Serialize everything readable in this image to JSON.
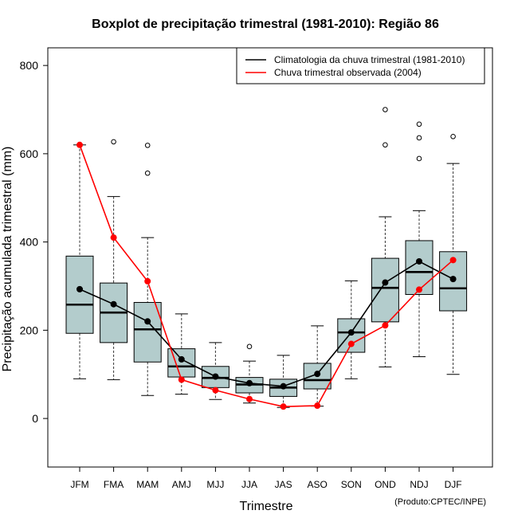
{
  "chart_data": {
    "type": "boxplot",
    "title": "Boxplot de precipitação trimestral (1981-2010): Região 86",
    "xlabel": "Trimestre",
    "ylabel": "Precipitação acumulada trimestral (mm)",
    "ylim": [
      -110,
      840
    ],
    "yticks": [
      0,
      200,
      400,
      600,
      800
    ],
    "categories": [
      "JFM",
      "FMA",
      "MAM",
      "AMJ",
      "MJJ",
      "JJA",
      "JAS",
      "ASO",
      "SON",
      "OND",
      "NDJ",
      "DJF"
    ],
    "boxes": [
      {
        "category": "JFM",
        "whisker_low": 90,
        "q1": 193,
        "median": 258,
        "q3": 368,
        "whisker_high": 620,
        "outliers": []
      },
      {
        "category": "FMA",
        "whisker_low": 88,
        "q1": 172,
        "median": 240,
        "q3": 307,
        "whisker_high": 503,
        "outliers": [
          627
        ]
      },
      {
        "category": "MAM",
        "whisker_low": 52,
        "q1": 128,
        "median": 202,
        "q3": 263,
        "whisker_high": 410,
        "outliers": [
          556,
          619
        ]
      },
      {
        "category": "AMJ",
        "whisker_low": 55,
        "q1": 94,
        "median": 118,
        "q3": 158,
        "whisker_high": 237,
        "outliers": []
      },
      {
        "category": "MJJ",
        "whisker_low": 43,
        "q1": 70,
        "median": 92,
        "q3": 118,
        "whisker_high": 172,
        "outliers": []
      },
      {
        "category": "JJA",
        "whisker_low": 35,
        "q1": 58,
        "median": 77,
        "q3": 93,
        "whisker_high": 130,
        "outliers": [
          163
        ]
      },
      {
        "category": "JAS",
        "whisker_low": 25,
        "q1": 50,
        "median": 70,
        "q3": 89,
        "whisker_high": 143,
        "outliers": []
      },
      {
        "category": "ASO",
        "whisker_low": 28,
        "q1": 67,
        "median": 87,
        "q3": 125,
        "whisker_high": 210,
        "outliers": []
      },
      {
        "category": "SON",
        "whisker_low": 90,
        "q1": 150,
        "median": 195,
        "q3": 226,
        "whisker_high": 312,
        "outliers": []
      },
      {
        "category": "OND",
        "whisker_low": 117,
        "q1": 219,
        "median": 296,
        "q3": 363,
        "whisker_high": 457,
        "outliers": [
          620,
          700
        ]
      },
      {
        "category": "NDJ",
        "whisker_low": 140,
        "q1": 281,
        "median": 332,
        "q3": 403,
        "whisker_high": 471,
        "outliers": [
          589,
          636,
          667
        ]
      },
      {
        "category": "DJF",
        "whisker_low": 100,
        "q1": 244,
        "median": 295,
        "q3": 378,
        "whisker_high": 578,
        "outliers": [
          639
        ]
      }
    ],
    "series": [
      {
        "name": "Climatologia da chuva trimestral (1981-2010)",
        "color": "#000000",
        "values": [
          293,
          259,
          220,
          134,
          95,
          80,
          73,
          101,
          195,
          308,
          356,
          316
        ]
      },
      {
        "name": "Chuva trimestral observada (2004)",
        "color": "#ff0000",
        "values": [
          620,
          410,
          311,
          88,
          64,
          44,
          27,
          29,
          169,
          211,
          292,
          359
        ]
      }
    ],
    "legend_position": "top-right",
    "box_fill": "#b3cccc",
    "credit": "(Produto:CPTEC/INPE)"
  }
}
